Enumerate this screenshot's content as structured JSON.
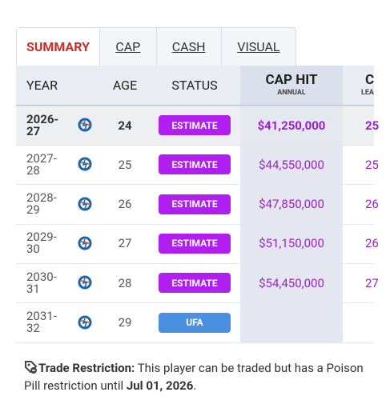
{
  "tabs": [
    "SUMMARY",
    "CAP",
    "CASH",
    "VISUAL"
  ],
  "table": {
    "headers": {
      "year": "YEAR",
      "age": "AGE",
      "status": "STATUS",
      "cap_hit": "CAP HIT",
      "cap_hit_sub": "ANNUAL",
      "next": "C",
      "next_sub": "LEA"
    },
    "rows": [
      {
        "year": "2026-27",
        "age": "24",
        "status": "ESTIMATE",
        "cap_hit": "$41,250,000",
        "next": "25"
      },
      {
        "year": "2027-28",
        "age": "25",
        "status": "ESTIMATE",
        "cap_hit": "$44,550,000",
        "next": "25"
      },
      {
        "year": "2028-29",
        "age": "26",
        "status": "ESTIMATE",
        "cap_hit": "$47,850,000",
        "next": "26"
      },
      {
        "year": "2029-30",
        "age": "27",
        "status": "ESTIMATE",
        "cap_hit": "$51,150,000",
        "next": "26"
      },
      {
        "year": "2030-31",
        "age": "28",
        "status": "ESTIMATE",
        "cap_hit": "$54,450,000",
        "next": "27"
      },
      {
        "year": "2031-32",
        "age": "29",
        "status": "UFA"
      }
    ]
  },
  "footer": {
    "label": "Trade Restriction:",
    "text": "This player can be traded but has a Poison Pill restriction until",
    "date": "Jul 01, 2026",
    "end": "."
  }
}
